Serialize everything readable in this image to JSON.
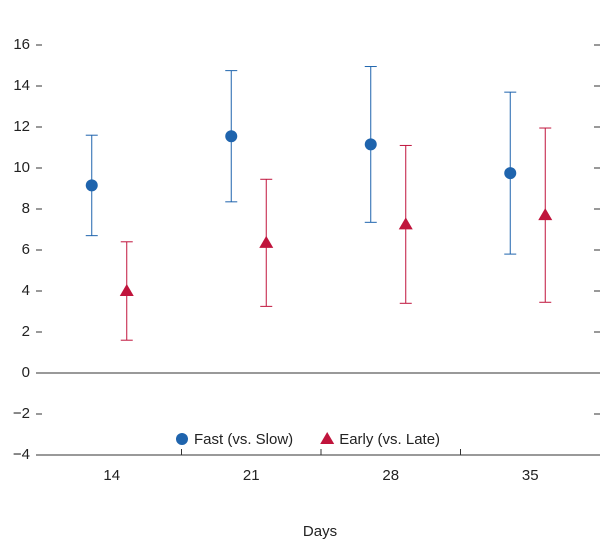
{
  "chart_data": {
    "type": "errorbar",
    "x_label": "Days",
    "categories": [
      "14",
      "21",
      "28",
      "35"
    ],
    "series": [
      {
        "name": "Fast (vs. Slow)",
        "color": "#1f64ad",
        "marker": "circle",
        "values": [
          9.15,
          11.55,
          11.15,
          9.75
        ],
        "error": [
          2.45,
          3.2,
          3.8,
          3.95
        ]
      },
      {
        "name": "Early (vs. Late)",
        "color": "#c0143c",
        "marker": "triangle",
        "values": [
          4.0,
          6.35,
          7.25,
          7.7
        ],
        "error": [
          2.4,
          3.1,
          3.85,
          4.25
        ]
      }
    ],
    "ylim": [
      -4,
      16
    ],
    "yticks": [
      {
        "value": -4,
        "label": "−4"
      },
      {
        "value": -2,
        "label": "−2"
      },
      0,
      2,
      4,
      6,
      8,
      10,
      12,
      14,
      16
    ],
    "zero_line": true
  }
}
